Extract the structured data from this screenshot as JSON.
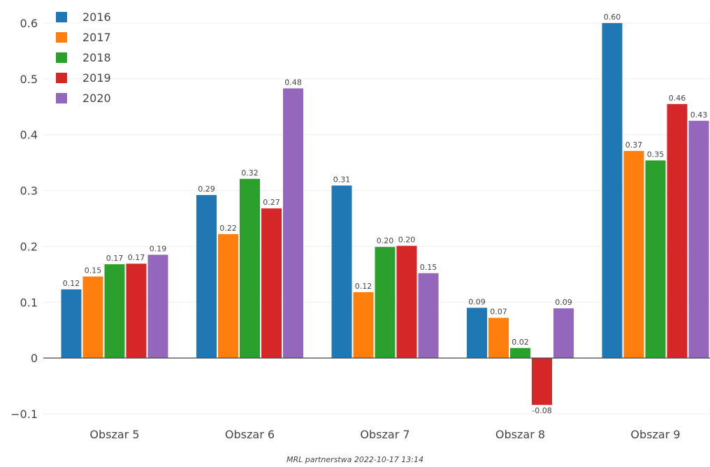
{
  "chart_data": {
    "type": "bar",
    "categories": [
      "Obszar 5",
      "Obszar 6",
      "Obszar 7",
      "Obszar 8",
      "Obszar 9"
    ],
    "series": [
      {
        "name": "2016",
        "color": "#1f77b4",
        "values": [
          0.123,
          0.292,
          0.309,
          0.09,
          0.6
        ],
        "labels": [
          "0.12",
          "0.29",
          "0.31",
          "0.09",
          "0.60"
        ]
      },
      {
        "name": "2017",
        "color": "#ff7f0e",
        "values": [
          0.146,
          0.222,
          0.118,
          0.072,
          0.371
        ],
        "labels": [
          "0.15",
          "0.22",
          "0.12",
          "0.07",
          "0.37"
        ]
      },
      {
        "name": "2018",
        "color": "#2ca02c",
        "values": [
          0.168,
          0.321,
          0.199,
          0.018,
          0.354
        ],
        "labels": [
          "0.17",
          "0.32",
          "0.20",
          "0.02",
          "0.35"
        ]
      },
      {
        "name": "2019",
        "color": "#d62728",
        "values": [
          0.169,
          0.268,
          0.201,
          -0.084,
          0.455
        ],
        "labels": [
          "0.17",
          "0.27",
          "0.20",
          "-0.08",
          "0.46"
        ]
      },
      {
        "name": "2020",
        "color": "#9467bd",
        "values": [
          0.185,
          0.483,
          0.152,
          0.089,
          0.425
        ],
        "labels": [
          "0.19",
          "0.48",
          "0.15",
          "0.09",
          "0.43"
        ]
      }
    ],
    "yticks": [
      -0.1,
      0,
      0.1,
      0.2,
      0.3,
      0.4,
      0.5,
      0.6
    ],
    "ytick_labels": [
      "−0.1",
      "0",
      "0.1",
      "0.2",
      "0.3",
      "0.4",
      "0.5",
      "0.6"
    ],
    "ylim": [
      -0.12,
      0.625
    ],
    "grid": true,
    "legend_position": "top-left",
    "title": "",
    "xlabel": "",
    "ylabel": ""
  },
  "footer": {
    "note": "MRL partnerstwa 2022-10-17 13:14"
  }
}
